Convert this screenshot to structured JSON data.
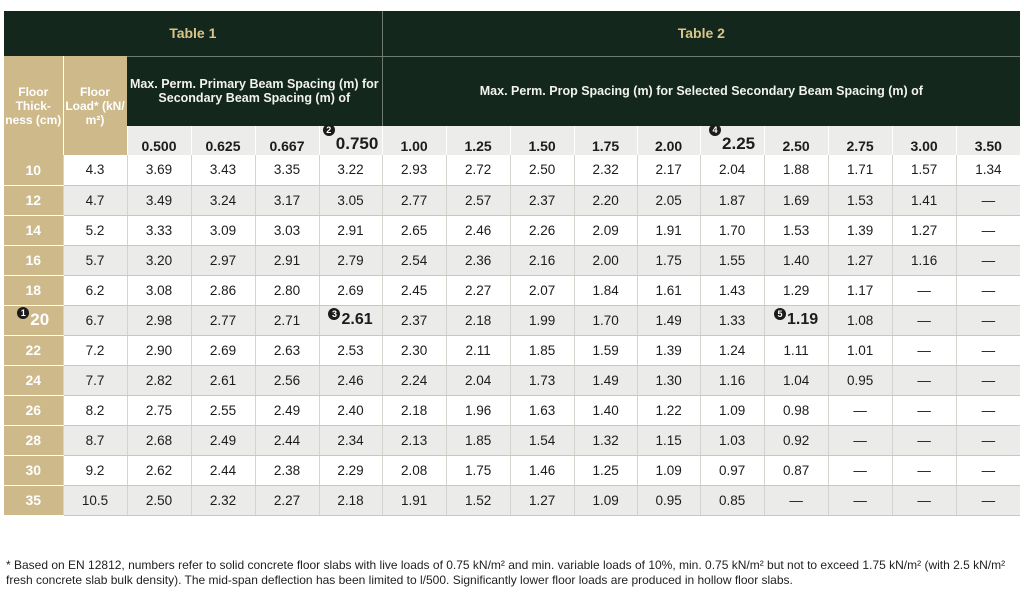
{
  "headers": {
    "table1_title": "Table 1",
    "table2_title": "Table 2",
    "floor_thickness": "Floor Thick-ness (cm)",
    "floor_load": "Floor Load* (kN/ m²)",
    "table1_desc": "Max. Perm. Primary Beam Spacing (m) for Secondary Beam Spacing (m) of",
    "table2_desc": "Max. Perm. Prop Spacing (m) for Selected Secondary Beam Spacing (m) of"
  },
  "spacings": [
    "0.500",
    "0.625",
    "0.667",
    "0.750",
    "1.00",
    "1.25",
    "1.50",
    "1.75",
    "2.00",
    "2.25",
    "2.50",
    "2.75",
    "3.00",
    "3.50"
  ],
  "markers": {
    "m1": "1",
    "m2": "2",
    "m3": "3",
    "m4": "4",
    "m5": "5"
  },
  "rows": [
    [
      "10",
      "4.3",
      "3.69",
      "3.43",
      "3.35",
      "3.22",
      "2.93",
      "2.72",
      "2.50",
      "2.32",
      "2.17",
      "2.04",
      "1.88",
      "1.71",
      "1.57",
      "1.34"
    ],
    [
      "12",
      "4.7",
      "3.49",
      "3.24",
      "3.17",
      "3.05",
      "2.77",
      "2.57",
      "2.37",
      "2.20",
      "2.05",
      "1.87",
      "1.69",
      "1.53",
      "1.41",
      "—"
    ],
    [
      "14",
      "5.2",
      "3.33",
      "3.09",
      "3.03",
      "2.91",
      "2.65",
      "2.46",
      "2.26",
      "2.09",
      "1.91",
      "1.70",
      "1.53",
      "1.39",
      "1.27",
      "—"
    ],
    [
      "16",
      "5.7",
      "3.20",
      "2.97",
      "2.91",
      "2.79",
      "2.54",
      "2.36",
      "2.16",
      "2.00",
      "1.75",
      "1.55",
      "1.40",
      "1.27",
      "1.16",
      "—"
    ],
    [
      "18",
      "6.2",
      "3.08",
      "2.86",
      "2.80",
      "2.69",
      "2.45",
      "2.27",
      "2.07",
      "1.84",
      "1.61",
      "1.43",
      "1.29",
      "1.17",
      "—",
      "—"
    ],
    [
      "20",
      "6.7",
      "2.98",
      "2.77",
      "2.71",
      "2.61",
      "2.37",
      "2.18",
      "1.99",
      "1.70",
      "1.49",
      "1.33",
      "1.19",
      "1.08",
      "—",
      "—"
    ],
    [
      "22",
      "7.2",
      "2.90",
      "2.69",
      "2.63",
      "2.53",
      "2.30",
      "2.11",
      "1.85",
      "1.59",
      "1.39",
      "1.24",
      "1.11",
      "1.01",
      "—",
      "—"
    ],
    [
      "24",
      "7.7",
      "2.82",
      "2.61",
      "2.56",
      "2.46",
      "2.24",
      "2.04",
      "1.73",
      "1.49",
      "1.30",
      "1.16",
      "1.04",
      "0.95",
      "—",
      "—"
    ],
    [
      "26",
      "8.2",
      "2.75",
      "2.55",
      "2.49",
      "2.40",
      "2.18",
      "1.96",
      "1.63",
      "1.40",
      "1.22",
      "1.09",
      "0.98",
      "—",
      "—",
      "—"
    ],
    [
      "28",
      "8.7",
      "2.68",
      "2.49",
      "2.44",
      "2.34",
      "2.13",
      "1.85",
      "1.54",
      "1.32",
      "1.15",
      "1.03",
      "0.92",
      "—",
      "—",
      "—"
    ],
    [
      "30",
      "9.2",
      "2.62",
      "2.44",
      "2.38",
      "2.29",
      "2.08",
      "1.75",
      "1.46",
      "1.25",
      "1.09",
      "0.97",
      "0.87",
      "—",
      "—",
      "—"
    ],
    [
      "35",
      "10.5",
      "2.50",
      "2.32",
      "2.27",
      "2.18",
      "1.91",
      "1.52",
      "1.27",
      "1.09",
      "0.95",
      "0.85",
      "—",
      "—",
      "—",
      "—"
    ]
  ],
  "footnote": "* Based on EN 12812, numbers refer to solid concrete floor slabs with live loads of 0.75 kN/m² and min. variable loads of 10%, min. 0.75 kN/m² but not to exceed 1.75 kN/m² (with 2.5 kN/m² fresh concrete slab bulk density). The mid-span deflection has been limited to l/500. Significantly lower floor loads are produced in hollow floor slabs.",
  "colors": {
    "header_bg": "#13271c",
    "header_title": "#d8c68a",
    "side_bg": "#cdb98a",
    "row_alt": "#ebebea"
  }
}
